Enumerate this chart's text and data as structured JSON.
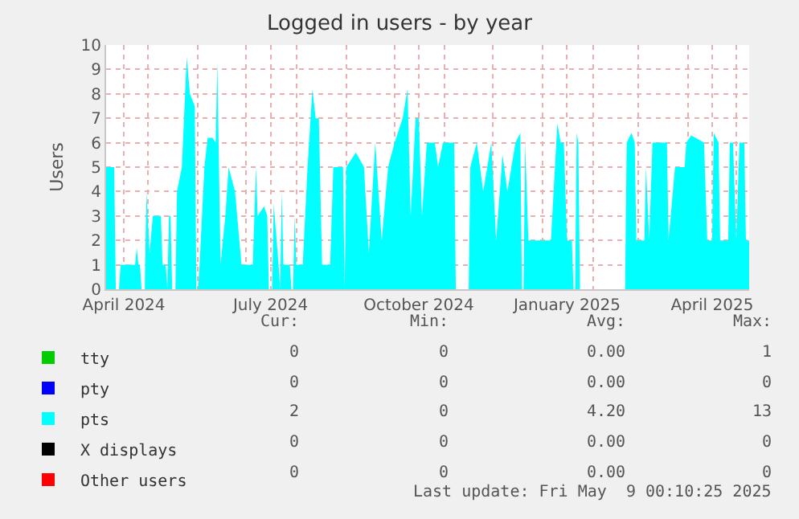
{
  "chart_data": {
    "type": "area",
    "title": "Logged in users - by year",
    "ylabel": "Users",
    "xlim": [
      "2024-04-05",
      "2025-05-09"
    ],
    "ylim": [
      0,
      10
    ],
    "yticks": [
      0,
      1,
      2,
      3,
      4,
      5,
      6,
      7,
      8,
      9,
      10
    ],
    "xticks": [
      {
        "value": "2024-04-16",
        "label": "April 2024"
      },
      {
        "value": "2024-07-16",
        "label": "July 2024"
      },
      {
        "value": "2024-10-16",
        "label": "October 2024"
      },
      {
        "value": "2025-01-16",
        "label": "January 2025"
      },
      {
        "value": "2025-04-16",
        "label": "April 2025"
      },
      {
        "value": "2024-05-01",
        "label": null
      },
      {
        "value": "2024-06-01",
        "label": null
      },
      {
        "value": "2024-07-01",
        "label": null
      },
      {
        "value": "2024-08-01",
        "label": null
      },
      {
        "value": "2024-09-01",
        "label": null
      },
      {
        "value": "2024-10-01",
        "label": null
      },
      {
        "value": "2024-11-01",
        "label": null
      },
      {
        "value": "2024-12-01",
        "label": null
      },
      {
        "value": "2025-01-01",
        "label": null
      },
      {
        "value": "2025-02-01",
        "label": null
      },
      {
        "value": "2025-03-01",
        "label": null
      },
      {
        "value": "2025-04-01",
        "label": null
      },
      {
        "value": "2025-05-01",
        "label": null
      }
    ],
    "grid": true,
    "legend": "bottom",
    "x": [
      "2024-04-05",
      "2024-04-10",
      "2024-04-11",
      "2024-04-13",
      "2024-04-14",
      "2024-04-23",
      "2024-04-24",
      "2024-04-25",
      "2024-04-26",
      "2024-04-27",
      "2024-04-29",
      "2024-04-30",
      "2024-05-02",
      "2024-05-04",
      "2024-05-09",
      "2024-05-10",
      "2024-05-12",
      "2024-05-13",
      "2024-05-14",
      "2024-05-15",
      "2024-05-16",
      "2024-05-18",
      "2024-05-19",
      "2024-05-22",
      "2024-05-25",
      "2024-05-27",
      "2024-05-30",
      "2024-05-31",
      "2024-06-01",
      "2024-06-02",
      "2024-06-05",
      "2024-06-07",
      "2024-06-10",
      "2024-06-12",
      "2024-06-13",
      "2024-06-15",
      "2024-06-18",
      "2024-06-20",
      "2024-06-24",
      "2024-06-28",
      "2024-07-05",
      "2024-07-07",
      "2024-07-08",
      "2024-07-12",
      "2024-07-14",
      "2024-07-15",
      "2024-07-17",
      "2024-07-18",
      "2024-07-21",
      "2024-07-22",
      "2024-07-23",
      "2024-07-24",
      "2024-07-28",
      "2024-07-29",
      "2024-07-30",
      "2024-07-31",
      "2024-08-01",
      "2024-08-05",
      "2024-08-08",
      "2024-08-11",
      "2024-08-13",
      "2024-08-15",
      "2024-08-17",
      "2024-08-22",
      "2024-08-24",
      "2024-08-30",
      "2024-08-31",
      "2024-09-01",
      "2024-09-07",
      "2024-09-12",
      "2024-09-15",
      "2024-09-19",
      "2024-09-23",
      "2024-09-27",
      "2024-10-01",
      "2024-10-06",
      "2024-10-09",
      "2024-10-11",
      "2024-10-14",
      "2024-10-16",
      "2024-10-18",
      "2024-10-21",
      "2024-10-26",
      "2024-10-28",
      "2024-10-31",
      "2024-11-07",
      "2024-11-08",
      "2024-11-16",
      "2024-11-17",
      "2024-11-21",
      "2024-11-25",
      "2024-11-30",
      "2024-12-03",
      "2024-12-07",
      "2024-12-10",
      "2024-12-15",
      "2024-12-18",
      "2024-12-19",
      "2024-12-20",
      "2024-12-21",
      "2024-12-23",
      "2025-01-06",
      "2025-01-10",
      "2025-01-12",
      "2025-01-14",
      "2025-01-16",
      "2025-01-19",
      "2025-01-20",
      "2025-01-21",
      "2025-01-22",
      "2025-01-23",
      "2025-01-24",
      "2025-02-21",
      "2025-02-22",
      "2025-02-25",
      "2025-02-27",
      "2025-02-28",
      "2025-03-05",
      "2025-03-06",
      "2025-03-08",
      "2025-03-10",
      "2025-03-19",
      "2025-03-20",
      "2025-03-24",
      "2025-03-30",
      "2025-03-31",
      "2025-04-03",
      "2025-04-11",
      "2025-04-13",
      "2025-04-16",
      "2025-04-17",
      "2025-04-20",
      "2025-04-21",
      "2025-04-26",
      "2025-04-27",
      "2025-04-29",
      "2025-05-01",
      "2025-05-03",
      "2025-05-06",
      "2025-05-07",
      "2025-05-09"
    ],
    "series": [
      {
        "name": "tty",
        "color": "#00cc00",
        "values": [
          null,
          null,
          null,
          null,
          null,
          null,
          null,
          null,
          null,
          null,
          null,
          null,
          null,
          null,
          null,
          null,
          null,
          null,
          null,
          null,
          null,
          null,
          null,
          null,
          null,
          null,
          null,
          null,
          null,
          null,
          null,
          null,
          null,
          null,
          null,
          null,
          null,
          null,
          null,
          null,
          null,
          null,
          null,
          null,
          null,
          null,
          null,
          null,
          null,
          null,
          null,
          null,
          null,
          null,
          null,
          null,
          null,
          null,
          null,
          null,
          null,
          null,
          null,
          null,
          null,
          null,
          null,
          null,
          null,
          null,
          null,
          null,
          null,
          null,
          null,
          null,
          null,
          null,
          null,
          null,
          null,
          null,
          null,
          null,
          null,
          null,
          null,
          null,
          null,
          null,
          null,
          null,
          null,
          null,
          null,
          null,
          null,
          null,
          null,
          null,
          null,
          null,
          null,
          null,
          null,
          null,
          null,
          null,
          null,
          null,
          null,
          null,
          null,
          null,
          null,
          null,
          null,
          null,
          null,
          null,
          null,
          null,
          null,
          null,
          null,
          null,
          null,
          null,
          null,
          null,
          null,
          null,
          null,
          null,
          null,
          null,
          null,
          null,
          null,
          null,
          null
        ]
      },
      {
        "name": "pty",
        "color": "#0000ff",
        "values": [
          null,
          null,
          null,
          null,
          null,
          null,
          null,
          null,
          null,
          null,
          null,
          null,
          null,
          null,
          null,
          null,
          null,
          null,
          null,
          null,
          null,
          null,
          null,
          null,
          null,
          null,
          null,
          null,
          null,
          null,
          null,
          null,
          null,
          null,
          null,
          null,
          null,
          null,
          null,
          null,
          null,
          null,
          null,
          null,
          null,
          null,
          null,
          null,
          null,
          null,
          null,
          null,
          null,
          null,
          null,
          null,
          null,
          null,
          null,
          null,
          null,
          null,
          null,
          null,
          null,
          null,
          null,
          null,
          null,
          null,
          null,
          null,
          null,
          null,
          null,
          null,
          null,
          null,
          null,
          null,
          null,
          null,
          null,
          null,
          null,
          null,
          null,
          null,
          null,
          null,
          null,
          null,
          null,
          null,
          null,
          null,
          null,
          null,
          null,
          null,
          null,
          null,
          null,
          null,
          null,
          null,
          null,
          null,
          null,
          null,
          null,
          null,
          null,
          null,
          null,
          null,
          null,
          null,
          null,
          null,
          null,
          null,
          null,
          null,
          null,
          null,
          null,
          null,
          null,
          null,
          null,
          null,
          null,
          null,
          null,
          null,
          null,
          null,
          null,
          null,
          null
        ]
      },
      {
        "name": "pts",
        "color": "#00ffff",
        "values": [
          5,
          5,
          0,
          0,
          1,
          1,
          1.7,
          1,
          1,
          0,
          0,
          4,
          1.5,
          3,
          3,
          1,
          1,
          0,
          3,
          3,
          0,
          0,
          4,
          5,
          9.5,
          8,
          7.5,
          0,
          0,
          1,
          5,
          6.2,
          6.2,
          6,
          9.3,
          1,
          3,
          5,
          4,
          1,
          1,
          5,
          3,
          3.4,
          3,
          0,
          0,
          3.5,
          1,
          0,
          4,
          1,
          1,
          0,
          0,
          3,
          1,
          1,
          5,
          8.2,
          7,
          7,
          1,
          1,
          5,
          5,
          0,
          5,
          5.6,
          5,
          1.5,
          6,
          2,
          5,
          6,
          7,
          8.2,
          3,
          7,
          7,
          3,
          6,
          6,
          5,
          6,
          6,
          0,
          0,
          5,
          6,
          4,
          6,
          2,
          5.5,
          4,
          6,
          6.4,
          0,
          0,
          6,
          2,
          2,
          6.8,
          6,
          6,
          2,
          2,
          0,
          0,
          6.4,
          6,
          0,
          0,
          6,
          6.4,
          6,
          2,
          2,
          5,
          2,
          6,
          6,
          2,
          5,
          5,
          6,
          6.3,
          6,
          2,
          2,
          6.4,
          6,
          2,
          2,
          6,
          6,
          2,
          6,
          6,
          2,
          2
        ]
      },
      {
        "name": "X displays",
        "color": "#000000",
        "values": [
          null,
          null,
          null,
          null,
          null,
          null,
          null,
          null,
          null,
          null,
          null,
          null,
          null,
          null,
          null,
          null,
          null,
          null,
          null,
          null,
          null,
          null,
          null,
          null,
          null,
          null,
          null,
          null,
          null,
          null,
          null,
          null,
          null,
          null,
          null,
          null,
          null,
          null,
          null,
          null,
          null,
          null,
          null,
          null,
          null,
          null,
          null,
          null,
          null,
          null,
          null,
          null,
          null,
          null,
          null,
          null,
          null,
          null,
          null,
          null,
          null,
          null,
          null,
          null,
          null,
          null,
          null,
          null,
          null,
          null,
          null,
          null,
          null,
          null,
          null,
          null,
          null,
          null,
          null,
          null,
          null,
          null,
          null,
          null,
          null,
          null,
          null,
          null,
          null,
          null,
          null,
          null,
          null,
          null,
          null,
          null,
          null,
          null,
          null,
          null,
          null,
          null,
          null,
          null,
          null,
          null,
          null,
          null,
          null,
          null,
          null,
          null,
          null,
          null,
          null,
          null,
          null,
          null,
          null,
          null,
          null,
          null,
          null,
          null,
          null,
          null,
          null,
          null,
          null,
          null,
          null,
          null,
          null,
          null,
          null,
          null,
          null,
          null,
          null,
          null,
          null
        ]
      },
      {
        "name": "Other users",
        "color": "#ff0000",
        "values": [
          null,
          null,
          null,
          null,
          null,
          null,
          null,
          null,
          null,
          null,
          null,
          null,
          null,
          null,
          null,
          null,
          null,
          null,
          null,
          null,
          null,
          null,
          null,
          null,
          null,
          null,
          null,
          null,
          null,
          null,
          null,
          null,
          null,
          null,
          null,
          null,
          null,
          null,
          null,
          null,
          null,
          null,
          null,
          null,
          null,
          null,
          null,
          null,
          null,
          null,
          null,
          null,
          null,
          null,
          null,
          null,
          null,
          null,
          null,
          null,
          null,
          null,
          null,
          null,
          null,
          null,
          null,
          null,
          null,
          null,
          null,
          null,
          null,
          null,
          null,
          null,
          null,
          null,
          null,
          null,
          null,
          null,
          null,
          null,
          null,
          null,
          null,
          null,
          null,
          null,
          null,
          null,
          null,
          null,
          null,
          null,
          null,
          null,
          null,
          null,
          null,
          null,
          null,
          null,
          null,
          null,
          null,
          null,
          null,
          null,
          null,
          null,
          null,
          null,
          null,
          null,
          null,
          null,
          null,
          null,
          null,
          null,
          null,
          null,
          null,
          null,
          null,
          null,
          null,
          null,
          null,
          null,
          null,
          null,
          null,
          null,
          null,
          null,
          null,
          null,
          null
        ]
      }
    ],
    "annotations": [
      "Cur:",
      "Min:",
      "Avg:",
      "Max:",
      "0",
      "0",
      "0.00",
      "1",
      "0",
      "0",
      "0.00",
      "0",
      "2",
      "0",
      "4.20",
      "13",
      "0",
      "0",
      "0.00",
      "0",
      "0",
      "0",
      "0.00",
      "0",
      "Last update: Fri May  9 00:10:25 2025"
    ]
  }
}
